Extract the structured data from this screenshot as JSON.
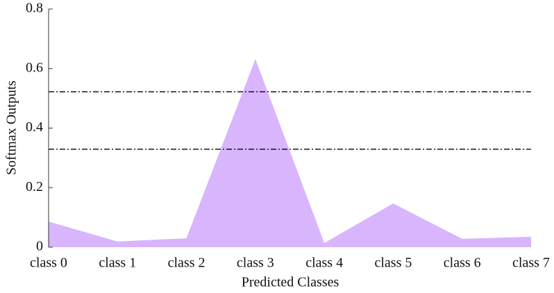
{
  "chart_data": {
    "type": "area",
    "x_label": "Predicted Classes",
    "y_label": "Softmax Outputs",
    "categories": [
      "class 0",
      "class 1",
      "class 2",
      "class 3",
      "class 4",
      "class 5",
      "class 6",
      "class 7"
    ],
    "values": [
      0.086,
      0.019,
      0.03,
      0.632,
      0.014,
      0.147,
      0.028,
      0.035
    ],
    "color": "#d8b5fd",
    "reference_lines": [
      0.522,
      0.329
    ],
    "ylim": [
      0,
      0.8
    ],
    "yticks": [
      0,
      0.2,
      0.4,
      0.6,
      0.8
    ]
  }
}
